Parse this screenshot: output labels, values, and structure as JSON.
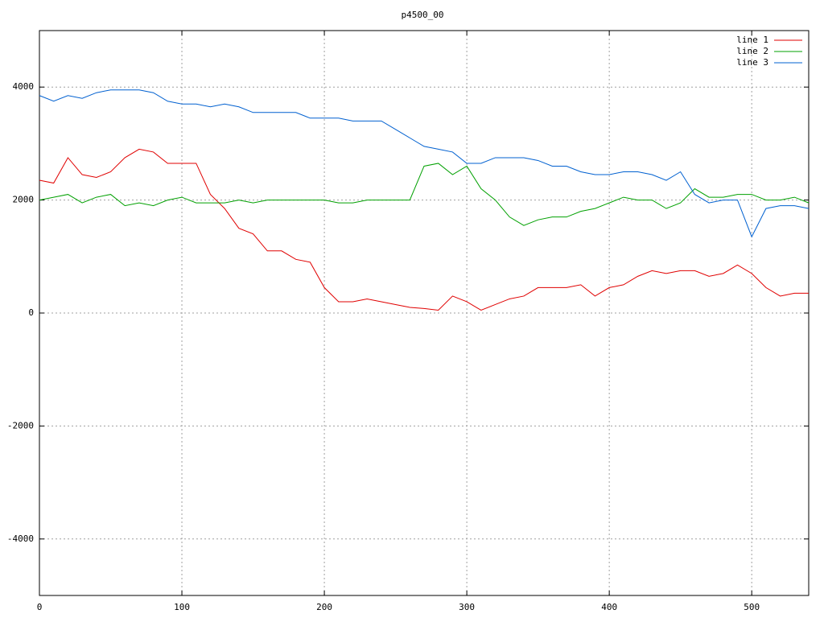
{
  "chart_data": {
    "type": "line",
    "title": "p4500_00",
    "x": [
      0,
      10,
      20,
      30,
      40,
      50,
      60,
      70,
      80,
      90,
      100,
      110,
      120,
      130,
      140,
      150,
      160,
      170,
      180,
      190,
      200,
      210,
      220,
      230,
      240,
      250,
      260,
      270,
      280,
      290,
      300,
      310,
      320,
      330,
      340,
      350,
      360,
      370,
      380,
      390,
      400,
      410,
      420,
      430,
      440,
      450,
      460,
      470,
      480,
      490,
      500,
      510,
      520,
      530,
      540
    ],
    "series": [
      {
        "name": "line 1",
        "color": "#e00000",
        "values": [
          2350,
          2300,
          2750,
          2450,
          2400,
          2500,
          2750,
          2900,
          2850,
          2650,
          2650,
          2650,
          2100,
          1850,
          1500,
          1400,
          1100,
          1100,
          950,
          900,
          450,
          200,
          200,
          250,
          200,
          150,
          100,
          80,
          50,
          300,
          200,
          50,
          150,
          250,
          300,
          450,
          450,
          450,
          500,
          300,
          450,
          500,
          650,
          750,
          700,
          750,
          750,
          650,
          700,
          850,
          700,
          450,
          300,
          350,
          350
        ]
      },
      {
        "name": "line 2",
        "color": "#00a000",
        "values": [
          2000,
          2050,
          2100,
          1950,
          2050,
          2100,
          1900,
          1950,
          1900,
          2000,
          2050,
          1950,
          1950,
          1950,
          2000,
          1950,
          2000,
          2000,
          2000,
          2000,
          2000,
          1950,
          1950,
          2000,
          2000,
          2000,
          2000,
          2600,
          2650,
          2450,
          2600,
          2200,
          2000,
          1700,
          1550,
          1650,
          1700,
          1700,
          1800,
          1850,
          1950,
          2050,
          2000,
          2000,
          1850,
          1950,
          2200,
          2050,
          2050,
          2100,
          2100,
          2000,
          2000,
          2050,
          1950
        ]
      },
      {
        "name": "line 3",
        "color": "#0060d0",
        "values": [
          3850,
          3750,
          3850,
          3800,
          3900,
          3950,
          3950,
          3950,
          3900,
          3750,
          3700,
          3700,
          3650,
          3700,
          3650,
          3550,
          3550,
          3550,
          3550,
          3450,
          3450,
          3450,
          3400,
          3400,
          3400,
          3250,
          3100,
          2950,
          2900,
          2850,
          2650,
          2650,
          2750,
          2750,
          2750,
          2700,
          2600,
          2600,
          2500,
          2450,
          2450,
          2500,
          2500,
          2450,
          2350,
          2500,
          2100,
          1950,
          2000,
          2000,
          1350,
          1850,
          1900,
          1900,
          1850
        ]
      }
    ],
    "xlim": [
      0,
      540
    ],
    "xticks": [
      0,
      100,
      200,
      300,
      400,
      500
    ],
    "ylim": [
      -5000,
      5000
    ],
    "yticks": [
      -4000,
      -2000,
      0,
      2000,
      4000
    ],
    "grid": true,
    "legend": "top-right"
  }
}
